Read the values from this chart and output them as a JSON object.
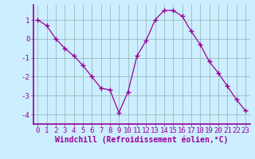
{
  "x": [
    0,
    1,
    2,
    3,
    4,
    5,
    6,
    7,
    8,
    9,
    10,
    11,
    12,
    13,
    14,
    15,
    16,
    17,
    18,
    19,
    20,
    21,
    22,
    23
  ],
  "y": [
    1.0,
    0.7,
    0.0,
    -0.5,
    -0.9,
    -1.4,
    -2.0,
    -2.6,
    -2.7,
    -3.9,
    -2.8,
    -0.9,
    -0.1,
    1.0,
    1.5,
    1.5,
    1.2,
    0.4,
    -0.3,
    -1.2,
    -1.8,
    -2.5,
    -3.2,
    -3.8
  ],
  "line_color": "#990099",
  "marker": "+",
  "marker_size": 4,
  "bg_color": "#cceeff",
  "grid_color": "#99bbbb",
  "axis_color": "#990099",
  "xlabel": "Windchill (Refroidissement éolien,°C)",
  "xlabel_fontsize": 7,
  "tick_fontsize": 6.5,
  "xlim": [
    -0.5,
    23.5
  ],
  "ylim": [
    -4.5,
    1.8
  ],
  "yticks": [
    -4,
    -3,
    -2,
    -1,
    0,
    1
  ],
  "xticks": [
    0,
    1,
    2,
    3,
    4,
    5,
    6,
    7,
    8,
    9,
    10,
    11,
    12,
    13,
    14,
    15,
    16,
    17,
    18,
    19,
    20,
    21,
    22,
    23
  ]
}
